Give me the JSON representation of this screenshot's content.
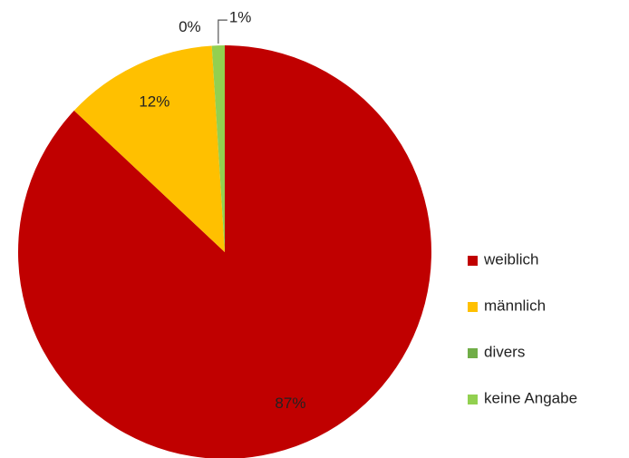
{
  "chart_data": {
    "type": "pie",
    "categories": [
      "weiblich",
      "männlich",
      "divers",
      "keine Angabe"
    ],
    "values": [
      87,
      12,
      0,
      1
    ],
    "value_labels": [
      "87%",
      "12%",
      "0%",
      "1%"
    ],
    "colors": [
      "#c00000",
      "#ffc000",
      "#70ad47",
      "#92d050"
    ],
    "legend": "right"
  }
}
